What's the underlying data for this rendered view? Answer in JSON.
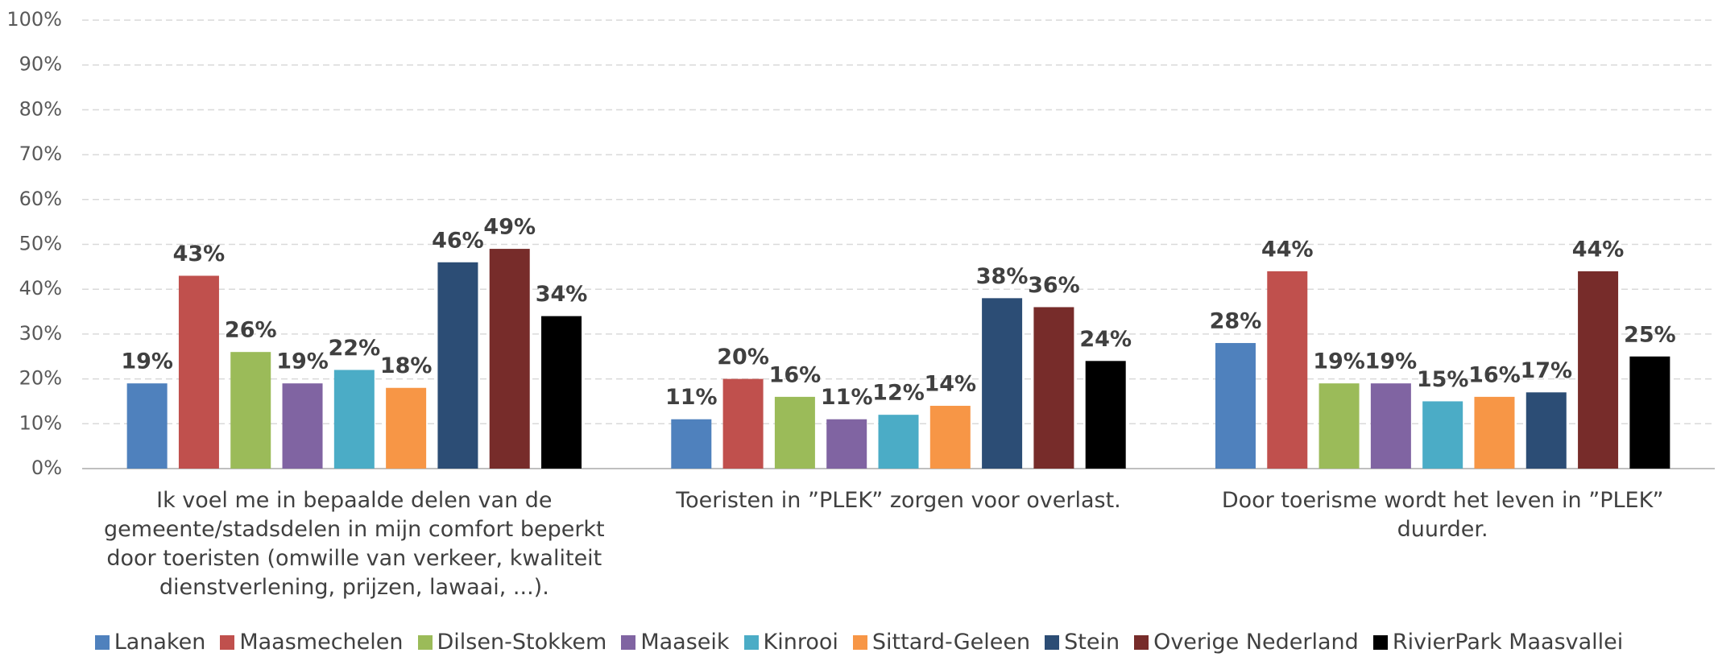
{
  "chart_data": {
    "type": "bar",
    "categories": [
      "Ik voel me in bepaalde delen van de gemeente/stadsdelen in mijn comfort beperkt door toeristen (omwille van verkeer, kwaliteit dienstverlening, prijzen, lawaai, ...).",
      "Toeristen in ”PLEK” zorgen voor overlast.",
      "Door toerisme wordt het leven in ”PLEK” duurder."
    ],
    "series": [
      {
        "name": "Lanaken",
        "color": "#4f81bd",
        "values": [
          19,
          11,
          28
        ],
        "value_labels": [
          "19%",
          "11%",
          "28%"
        ]
      },
      {
        "name": "Maasmechelen",
        "color": "#c0504d",
        "values": [
          43,
          20,
          44
        ],
        "value_labels": [
          "43%",
          "20%",
          "44%"
        ]
      },
      {
        "name": "Dilsen-Stokkem",
        "color": "#9bbb59",
        "values": [
          26,
          16,
          19
        ],
        "value_labels": [
          "26%",
          "16%",
          "19%"
        ]
      },
      {
        "name": "Maaseik",
        "color": "#8064a2",
        "values": [
          19,
          11,
          19
        ],
        "value_labels": [
          "19%",
          "11%",
          "19%"
        ]
      },
      {
        "name": "Kinrooi",
        "color": "#4bacc6",
        "values": [
          22,
          12,
          15
        ],
        "value_labels": [
          "22%",
          "12%",
          "15%"
        ]
      },
      {
        "name": "Sittard-Geleen",
        "color": "#f79646",
        "values": [
          18,
          14,
          16
        ],
        "value_labels": [
          "18%",
          "14%",
          "16%"
        ]
      },
      {
        "name": "Stein",
        "color": "#2c4d75",
        "values": [
          46,
          38,
          17
        ],
        "value_labels": [
          "46%",
          "38%",
          "17%"
        ]
      },
      {
        "name": "Overige Nederland",
        "color": "#772c2a",
        "values": [
          49,
          36,
          44
        ],
        "value_labels": [
          "49%",
          "36%",
          "44%"
        ]
      },
      {
        "name": "RivierPark Maasvallei",
        "color": "#000000",
        "values": [
          34,
          24,
          25
        ],
        "value_labels": [
          "34%",
          "24%",
          "25%"
        ]
      }
    ],
    "ylim": [
      0,
      100
    ],
    "yticks": [
      {
        "value": 0,
        "label": "0%"
      },
      {
        "value": 10,
        "label": "10%"
      },
      {
        "value": 20,
        "label": "20%"
      },
      {
        "value": 30,
        "label": "30%"
      },
      {
        "value": 40,
        "label": "40%"
      },
      {
        "value": 50,
        "label": "50%"
      },
      {
        "value": 60,
        "label": "60%"
      },
      {
        "value": 70,
        "label": "70%"
      },
      {
        "value": 80,
        "label": "80%"
      },
      {
        "value": 90,
        "label": "90%"
      },
      {
        "value": 100,
        "label": "100%"
      }
    ],
    "grid": true,
    "legend": "bottom"
  }
}
